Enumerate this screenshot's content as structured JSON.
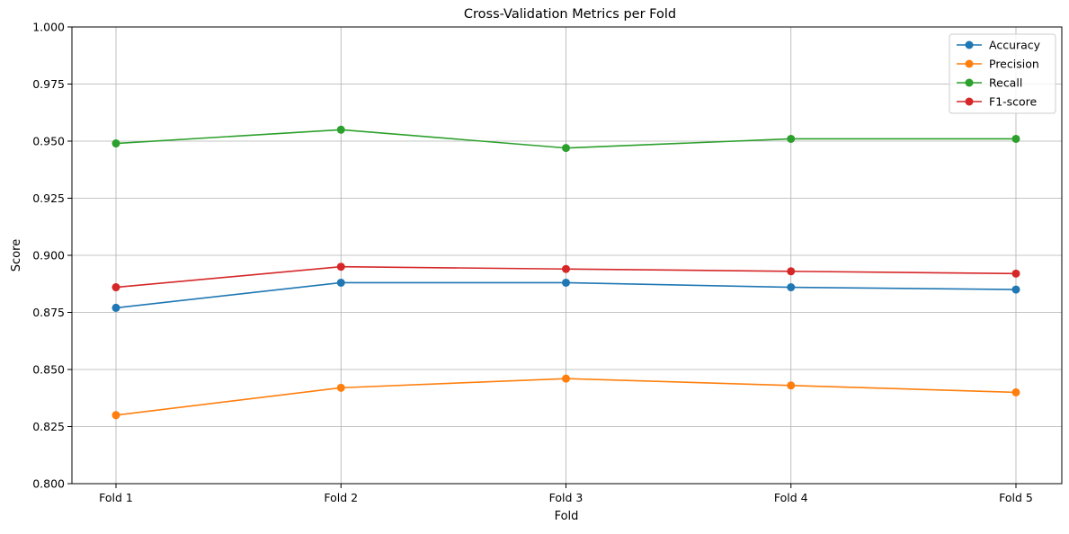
{
  "chart_data": {
    "type": "line",
    "title": "Cross-Validation Metrics per Fold",
    "xlabel": "Fold",
    "ylabel": "Score",
    "categories": [
      "Fold 1",
      "Fold 2",
      "Fold 3",
      "Fold 4",
      "Fold 5"
    ],
    "ylim": [
      0.8,
      1.0
    ],
    "yticks": [
      0.8,
      0.825,
      0.85,
      0.875,
      0.9,
      0.925,
      0.95,
      0.975,
      1.0
    ],
    "ytick_labels": [
      "0.800",
      "0.825",
      "0.850",
      "0.875",
      "0.900",
      "0.925",
      "0.950",
      "0.975",
      "1.000"
    ],
    "grid": true,
    "legend_position": "top-right",
    "series": [
      {
        "name": "Accuracy",
        "color": "#1f77b4",
        "values": [
          0.877,
          0.888,
          0.888,
          0.886,
          0.885
        ]
      },
      {
        "name": "Precision",
        "color": "#ff7f0e",
        "values": [
          0.83,
          0.842,
          0.846,
          0.843,
          0.84
        ]
      },
      {
        "name": "Recall",
        "color": "#2ca02c",
        "values": [
          0.949,
          0.955,
          0.947,
          0.951,
          0.951
        ]
      },
      {
        "name": "F1-score",
        "color": "#d62728",
        "values": [
          0.886,
          0.895,
          0.894,
          0.893,
          0.892
        ]
      }
    ]
  }
}
